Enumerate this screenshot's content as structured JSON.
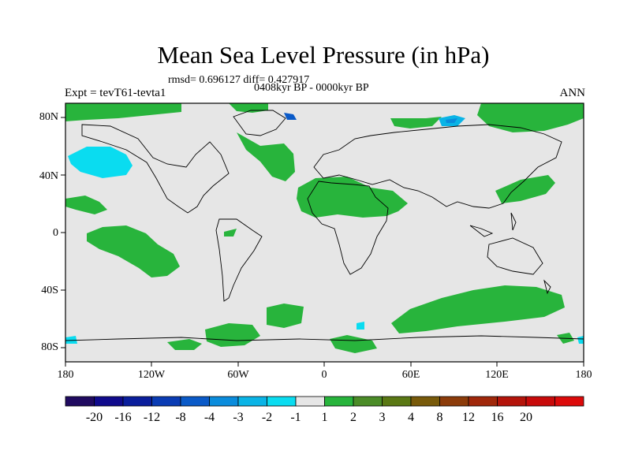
{
  "title": "Mean Sea Level Pressure (in hPa)",
  "subtitle_stats": "rmsd= 0.696127  diff= 0.427917",
  "subtitle_period": "0408kyr BP - 0000kyr BP",
  "left_label": "Expt = tevT61-tevta1",
  "right_label": "ANN",
  "lat_ticks": [
    "80N",
    "40N",
    "0",
    "40S",
    "80S"
  ],
  "lon_ticks": [
    "180",
    "120W",
    "60W",
    "0",
    "60E",
    "120E",
    "180"
  ],
  "colorbar": {
    "colors": [
      "#200a60",
      "#100a8c",
      "#0a1e9c",
      "#0a3cb4",
      "#0a5ac8",
      "#0a8cdc",
      "#0ab4e6",
      "#0adcf0",
      "#e6e6e6",
      "#28b43c",
      "#4b8c28",
      "#5a7814",
      "#785a0a",
      "#8c3c0a",
      "#a0280a",
      "#b4140a",
      "#c80a0a",
      "#dc0a0a"
    ],
    "labels": [
      "-20",
      "-16",
      "-12",
      "-8",
      "-4",
      "-3",
      "-2",
      "-1",
      "1",
      "2",
      "3",
      "4",
      "8",
      "12",
      "16",
      "20"
    ]
  },
  "land_color": "#000000",
  "ocean_color": "#e6e6e6"
}
